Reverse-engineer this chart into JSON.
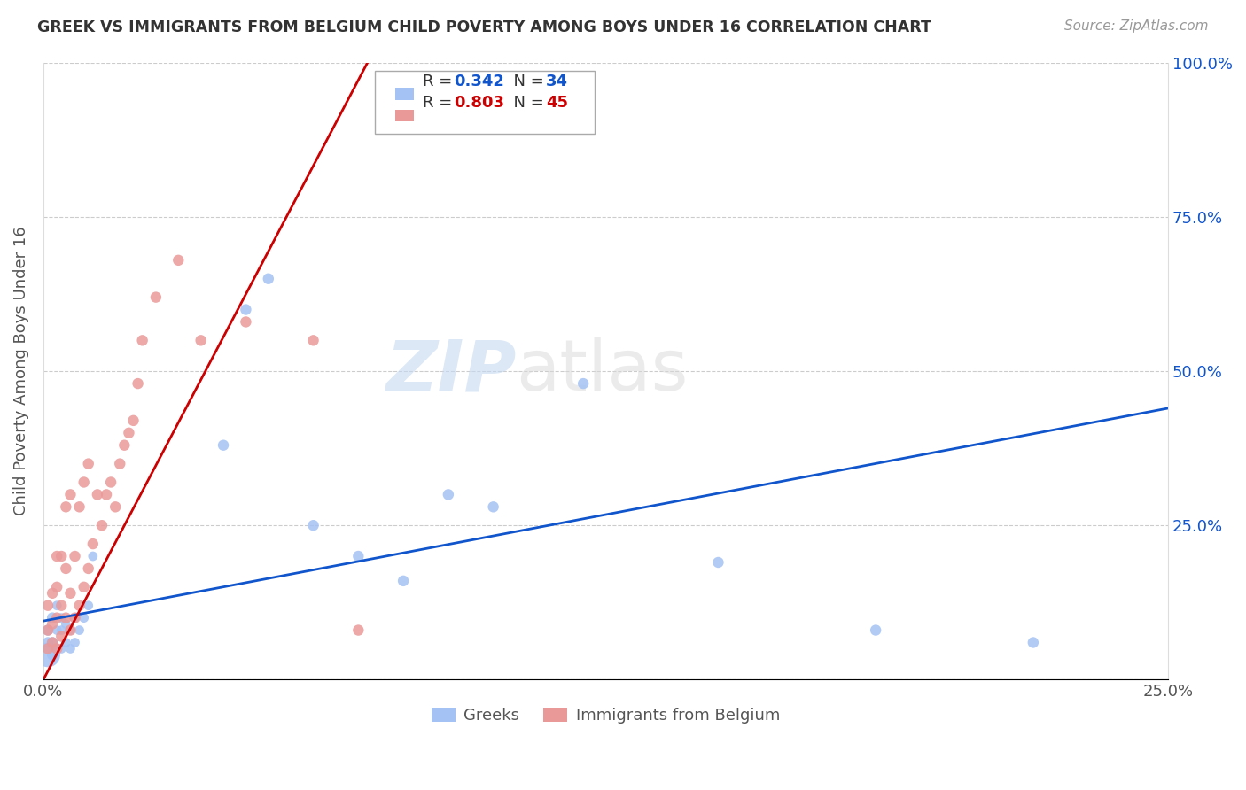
{
  "title": "GREEK VS IMMIGRANTS FROM BELGIUM CHILD POVERTY AMONG BOYS UNDER 16 CORRELATION CHART",
  "source": "Source: ZipAtlas.com",
  "ylabel": "Child Poverty Among Boys Under 16",
  "xlim": [
    0.0,
    0.25
  ],
  "ylim": [
    0.0,
    1.0
  ],
  "xticks": [
    0.0,
    0.05,
    0.1,
    0.15,
    0.2,
    0.25
  ],
  "yticks": [
    0.0,
    0.25,
    0.5,
    0.75,
    1.0
  ],
  "xtick_labels": [
    "0.0%",
    "",
    "",
    "",
    "",
    "25.0%"
  ],
  "ytick_labels_right": [
    "",
    "25.0%",
    "50.0%",
    "75.0%",
    "100.0%"
  ],
  "watermark_zip": "ZIP",
  "watermark_atlas": "atlas",
  "greek_R": 0.342,
  "greek_N": 34,
  "belgium_R": 0.803,
  "belgium_N": 45,
  "greek_color": "#a4c2f4",
  "belgium_color": "#ea9999",
  "greek_line_color": "#1155cc",
  "belgium_line_color": "#cc0000",
  "greek_label_color": "#1155cc",
  "belgium_label_color": "#cc0000",
  "greek_x": [
    0.001,
    0.001,
    0.001,
    0.002,
    0.002,
    0.002,
    0.003,
    0.003,
    0.003,
    0.004,
    0.004,
    0.004,
    0.005,
    0.005,
    0.006,
    0.006,
    0.007,
    0.007,
    0.008,
    0.009,
    0.01,
    0.011,
    0.04,
    0.045,
    0.05,
    0.06,
    0.07,
    0.08,
    0.09,
    0.1,
    0.12,
    0.15,
    0.185,
    0.22
  ],
  "greek_y": [
    0.04,
    0.06,
    0.08,
    0.04,
    0.06,
    0.1,
    0.05,
    0.08,
    0.12,
    0.05,
    0.08,
    0.1,
    0.06,
    0.09,
    0.05,
    0.08,
    0.06,
    0.1,
    0.08,
    0.1,
    0.12,
    0.2,
    0.38,
    0.6,
    0.65,
    0.25,
    0.2,
    0.16,
    0.3,
    0.28,
    0.48,
    0.19,
    0.08,
    0.06
  ],
  "greek_sizes": [
    400,
    80,
    80,
    80,
    80,
    80,
    60,
    60,
    60,
    60,
    60,
    60,
    60,
    60,
    60,
    60,
    60,
    60,
    60,
    60,
    60,
    60,
    80,
    80,
    80,
    80,
    80,
    80,
    80,
    80,
    80,
    80,
    80,
    80
  ],
  "belgium_x": [
    0.001,
    0.001,
    0.001,
    0.002,
    0.002,
    0.002,
    0.003,
    0.003,
    0.003,
    0.003,
    0.004,
    0.004,
    0.004,
    0.005,
    0.005,
    0.005,
    0.006,
    0.006,
    0.006,
    0.007,
    0.007,
    0.008,
    0.008,
    0.009,
    0.009,
    0.01,
    0.01,
    0.011,
    0.012,
    0.013,
    0.014,
    0.015,
    0.016,
    0.017,
    0.018,
    0.019,
    0.02,
    0.021,
    0.022,
    0.025,
    0.03,
    0.035,
    0.045,
    0.06,
    0.07
  ],
  "belgium_y": [
    0.05,
    0.08,
    0.12,
    0.06,
    0.09,
    0.14,
    0.05,
    0.1,
    0.15,
    0.2,
    0.07,
    0.12,
    0.2,
    0.1,
    0.18,
    0.28,
    0.08,
    0.14,
    0.3,
    0.1,
    0.2,
    0.12,
    0.28,
    0.15,
    0.32,
    0.18,
    0.35,
    0.22,
    0.3,
    0.25,
    0.3,
    0.32,
    0.28,
    0.35,
    0.38,
    0.4,
    0.42,
    0.48,
    0.55,
    0.62,
    0.68,
    0.55,
    0.58,
    0.55,
    0.08
  ],
  "belgium_sizes": [
    80,
    80,
    80,
    80,
    80,
    80,
    80,
    80,
    80,
    80,
    80,
    80,
    80,
    80,
    80,
    80,
    80,
    80,
    80,
    80,
    80,
    80,
    80,
    80,
    80,
    80,
    80,
    80,
    80,
    80,
    80,
    80,
    80,
    80,
    80,
    80,
    80,
    80,
    80,
    80,
    80,
    80,
    80,
    80,
    80
  ],
  "greek_line_x0": 0.0,
  "greek_line_x1": 0.25,
  "greek_line_y0": 0.095,
  "greek_line_y1": 0.44,
  "belgium_line_x0": 0.0,
  "belgium_line_x1": 0.072,
  "belgium_line_y0": 0.0,
  "belgium_line_y1": 1.0
}
